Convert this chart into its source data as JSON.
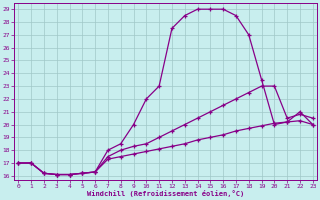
{
  "xlabel": "Windchill (Refroidissement éolien,°C)",
  "xlim": [
    -0.3,
    23.3
  ],
  "ylim": [
    15.7,
    29.5
  ],
  "yticks": [
    16,
    17,
    18,
    19,
    20,
    21,
    22,
    23,
    24,
    25,
    26,
    27,
    28,
    29
  ],
  "xticks": [
    0,
    1,
    2,
    3,
    4,
    5,
    6,
    7,
    8,
    9,
    10,
    11,
    12,
    13,
    14,
    15,
    16,
    17,
    18,
    19,
    20,
    21,
    22,
    23
  ],
  "background_color": "#c8eeee",
  "line_color": "#880088",
  "grid_color": "#a0c8c8",
  "curve1_x": [
    0,
    1,
    2,
    3,
    4,
    5,
    6,
    7,
    8,
    9,
    10,
    11,
    12,
    13,
    14,
    15,
    16,
    17,
    18,
    19,
    20,
    21,
    22,
    23
  ],
  "curve1_y": [
    17.0,
    17.0,
    16.2,
    16.1,
    16.1,
    16.2,
    16.3,
    18.0,
    18.5,
    20.0,
    22.0,
    23.0,
    27.5,
    28.5,
    29.0,
    29.0,
    29.0,
    28.5,
    27.0,
    23.5,
    20.0,
    20.2,
    21.0,
    20.0
  ],
  "curve2_x": [
    0,
    1,
    2,
    3,
    4,
    5,
    6,
    7,
    8,
    9,
    10,
    11,
    12,
    13,
    14,
    15,
    16,
    17,
    18,
    19,
    20,
    21,
    22,
    23
  ],
  "curve2_y": [
    17.0,
    17.0,
    16.2,
    16.1,
    16.1,
    16.2,
    16.3,
    17.5,
    18.0,
    18.3,
    18.5,
    19.0,
    19.5,
    20.0,
    20.5,
    21.0,
    21.5,
    22.0,
    22.5,
    23.0,
    23.0,
    20.5,
    20.8,
    20.5
  ],
  "curve3_x": [
    0,
    1,
    2,
    3,
    4,
    5,
    6,
    7,
    8,
    9,
    10,
    11,
    12,
    13,
    14,
    15,
    16,
    17,
    18,
    19,
    20,
    21,
    22,
    23
  ],
  "curve3_y": [
    17.0,
    17.0,
    16.2,
    16.1,
    16.1,
    16.2,
    16.3,
    17.3,
    17.5,
    17.7,
    17.9,
    18.1,
    18.3,
    18.5,
    18.8,
    19.0,
    19.2,
    19.5,
    19.7,
    19.9,
    20.1,
    20.2,
    20.3,
    20.0
  ]
}
